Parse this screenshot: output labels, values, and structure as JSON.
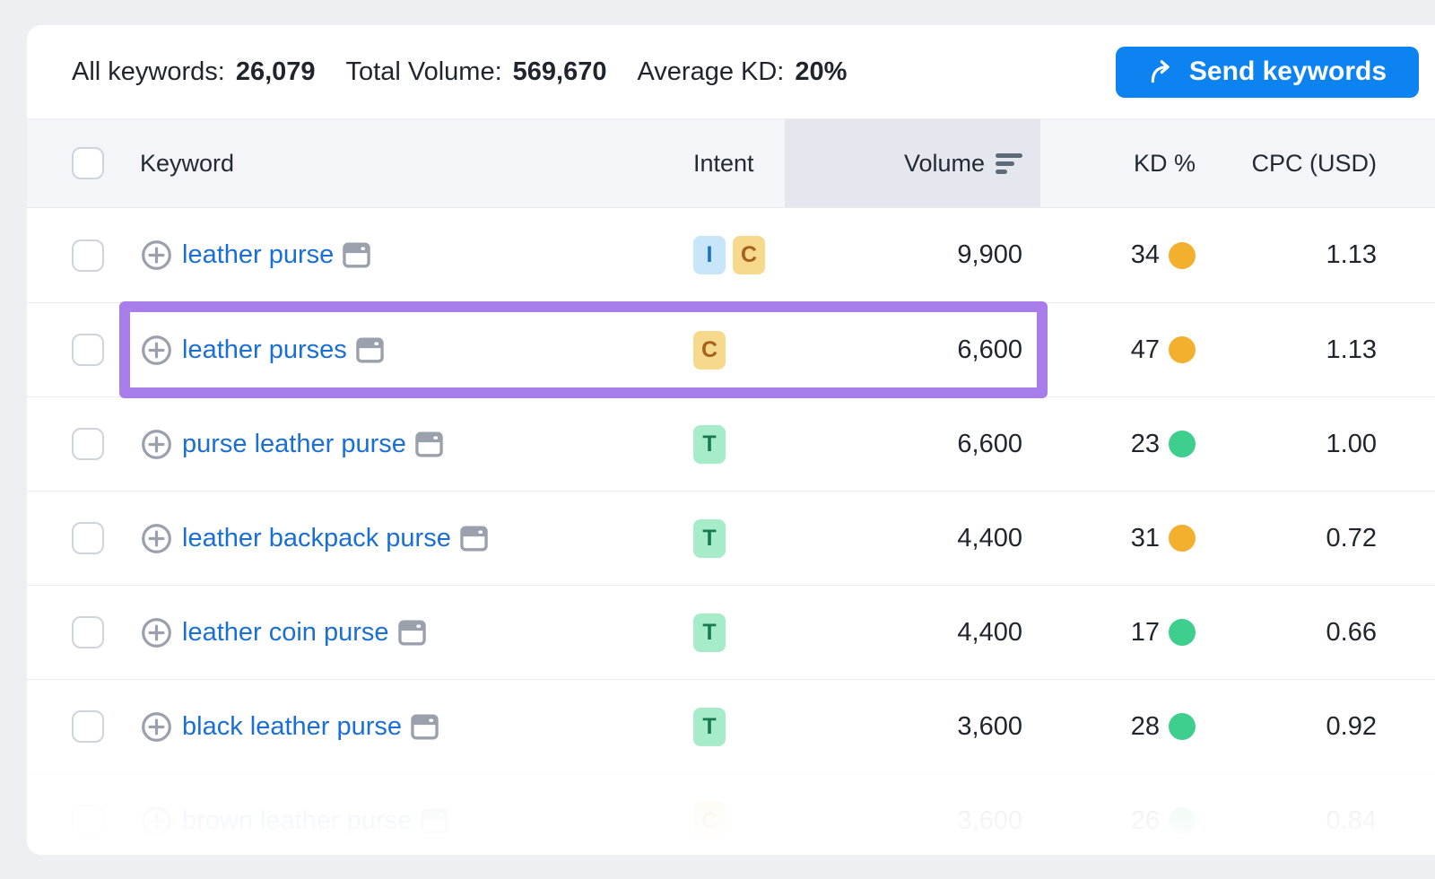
{
  "toolbar": {
    "stats": [
      {
        "label": "All keywords:",
        "value": "26,079"
      },
      {
        "label": "Total Volume:",
        "value": "569,670"
      },
      {
        "label": "Average KD:",
        "value": "20%"
      }
    ],
    "send_button": {
      "label": "Send keywords",
      "color": "#0d83f1"
    }
  },
  "table": {
    "columns": {
      "keyword": "Keyword",
      "intent": "Intent",
      "volume": "Volume",
      "kd": "KD %",
      "cpc": "CPC (USD)"
    },
    "sorted_column": "Volume",
    "intent_styles": {
      "I": {
        "bg": "#c7e6f9",
        "fg": "#2070c8"
      },
      "C": {
        "bg": "#f6d98c",
        "fg": "#a5611d"
      },
      "T": {
        "bg": "#a6ecc9",
        "fg": "#177a4f"
      }
    },
    "kd_dot_colors": {
      "orange": "#f3b02f",
      "green": "#3ecf8e"
    },
    "rows": [
      {
        "keyword": "leather purse",
        "intents": [
          "I",
          "C"
        ],
        "volume": "9,900",
        "kd": "34",
        "kd_level": "orange",
        "cpc": "1.13",
        "highlighted": false,
        "faded": false
      },
      {
        "keyword": "leather purses",
        "intents": [
          "C"
        ],
        "volume": "6,600",
        "kd": "47",
        "kd_level": "orange",
        "cpc": "1.13",
        "highlighted": true,
        "faded": false
      },
      {
        "keyword": "purse leather purse",
        "intents": [
          "T"
        ],
        "volume": "6,600",
        "kd": "23",
        "kd_level": "green",
        "cpc": "1.00",
        "highlighted": false,
        "faded": false
      },
      {
        "keyword": "leather backpack purse",
        "intents": [
          "T"
        ],
        "volume": "4,400",
        "kd": "31",
        "kd_level": "orange",
        "cpc": "0.72",
        "highlighted": false,
        "faded": false
      },
      {
        "keyword": "leather coin purse",
        "intents": [
          "T"
        ],
        "volume": "4,400",
        "kd": "17",
        "kd_level": "green",
        "cpc": "0.66",
        "highlighted": false,
        "faded": false
      },
      {
        "keyword": "black leather purse",
        "intents": [
          "T"
        ],
        "volume": "3,600",
        "kd": "28",
        "kd_level": "green",
        "cpc": "0.92",
        "highlighted": false,
        "faded": false
      },
      {
        "keyword": "brown leather purse",
        "intents": [
          "C"
        ],
        "volume": "3,600",
        "kd": "26",
        "kd_level": "green",
        "cpc": "0.84",
        "highlighted": false,
        "faded": true
      }
    ]
  },
  "annotation": {
    "highlighted_keyword": "leather purses",
    "color": "#a87ce9"
  }
}
